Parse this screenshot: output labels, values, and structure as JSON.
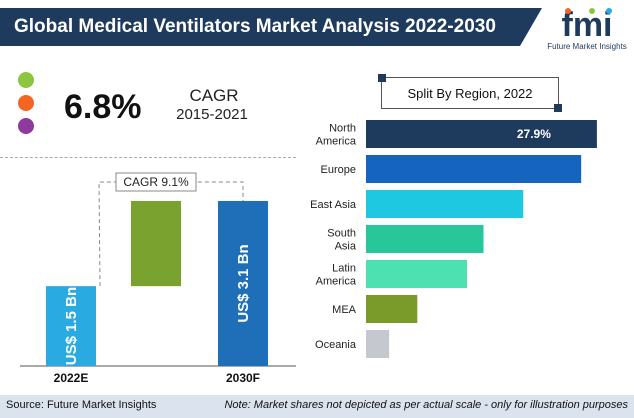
{
  "header": {
    "title": "Global Medical Ventilators Market Analysis 2022-2030",
    "logo_mark": "fmi",
    "logo_text": "Future Market Insights"
  },
  "summary": {
    "cagr_value": "6.8%",
    "cagr_label": "CAGR",
    "cagr_period": "2015-2021",
    "dot_colors": [
      "#8cc63f",
      "#f26522",
      "#8e3a9d"
    ]
  },
  "chart_data": [
    {
      "type": "bar",
      "categories": [
        "2022E",
        "2030F"
      ],
      "values": [
        1.5,
        3.1
      ],
      "value_labels": [
        "US$ 1.5 Bn",
        "US$ 3.1 Bn"
      ],
      "increment_color": "#7aa22e",
      "bar_colors": [
        "#29abe2",
        "#1f6fb8"
      ],
      "annotation": "CAGR 9.1%",
      "ylim": [
        0,
        3.4
      ]
    },
    {
      "type": "bar",
      "orientation": "horizontal",
      "title": "Split By Region, 2022",
      "categories": [
        [
          "North",
          "America"
        ],
        [
          "Europe"
        ],
        [
          "East Asia"
        ],
        [
          "South",
          "Asia"
        ],
        [
          "Latin",
          "America"
        ],
        [
          "MEA"
        ],
        [
          "Oceania"
        ]
      ],
      "values": [
        27.9,
        26.0,
        19.0,
        14.2,
        12.2,
        6.2,
        2.8
      ],
      "value_labels": [
        "27.9%",
        "",
        "",
        "",
        "",
        "",
        ""
      ],
      "colors": [
        "#1e3a5c",
        "#1565c0",
        "#1ec8e0",
        "#27c79a",
        "#4de0b0",
        "#7a9a2a",
        "#c5c8cf"
      ],
      "xlim": [
        0,
        29
      ]
    }
  ],
  "footer": {
    "source": "Source: Future Market Insights",
    "note": "Note: Market shares not depicted as per actual scale - only for illustration purposes"
  }
}
